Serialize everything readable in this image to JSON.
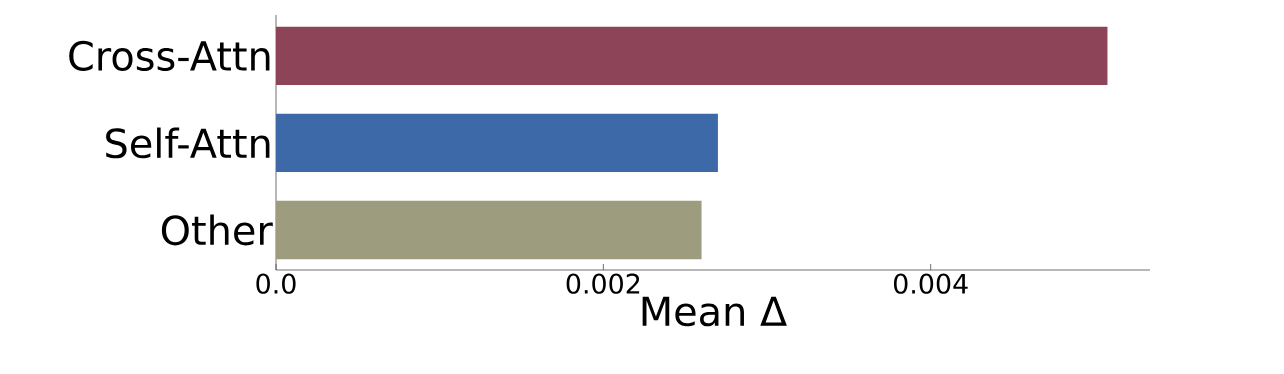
{
  "chart_data": {
    "type": "bar",
    "orientation": "horizontal",
    "xlabel": "Mean Δ",
    "categories": [
      "Cross-Attn",
      "Self-Attn",
      "Other"
    ],
    "values": [
      0.00508,
      0.0027,
      0.0026
    ],
    "colors": [
      "#8e4458",
      "#3d69a8",
      "#9e9c7e"
    ],
    "xlim": [
      0,
      0.00534
    ],
    "xticks": [
      {
        "value": 0,
        "label": "0.0"
      },
      0.002,
      0.004
    ],
    "grid": false
  }
}
